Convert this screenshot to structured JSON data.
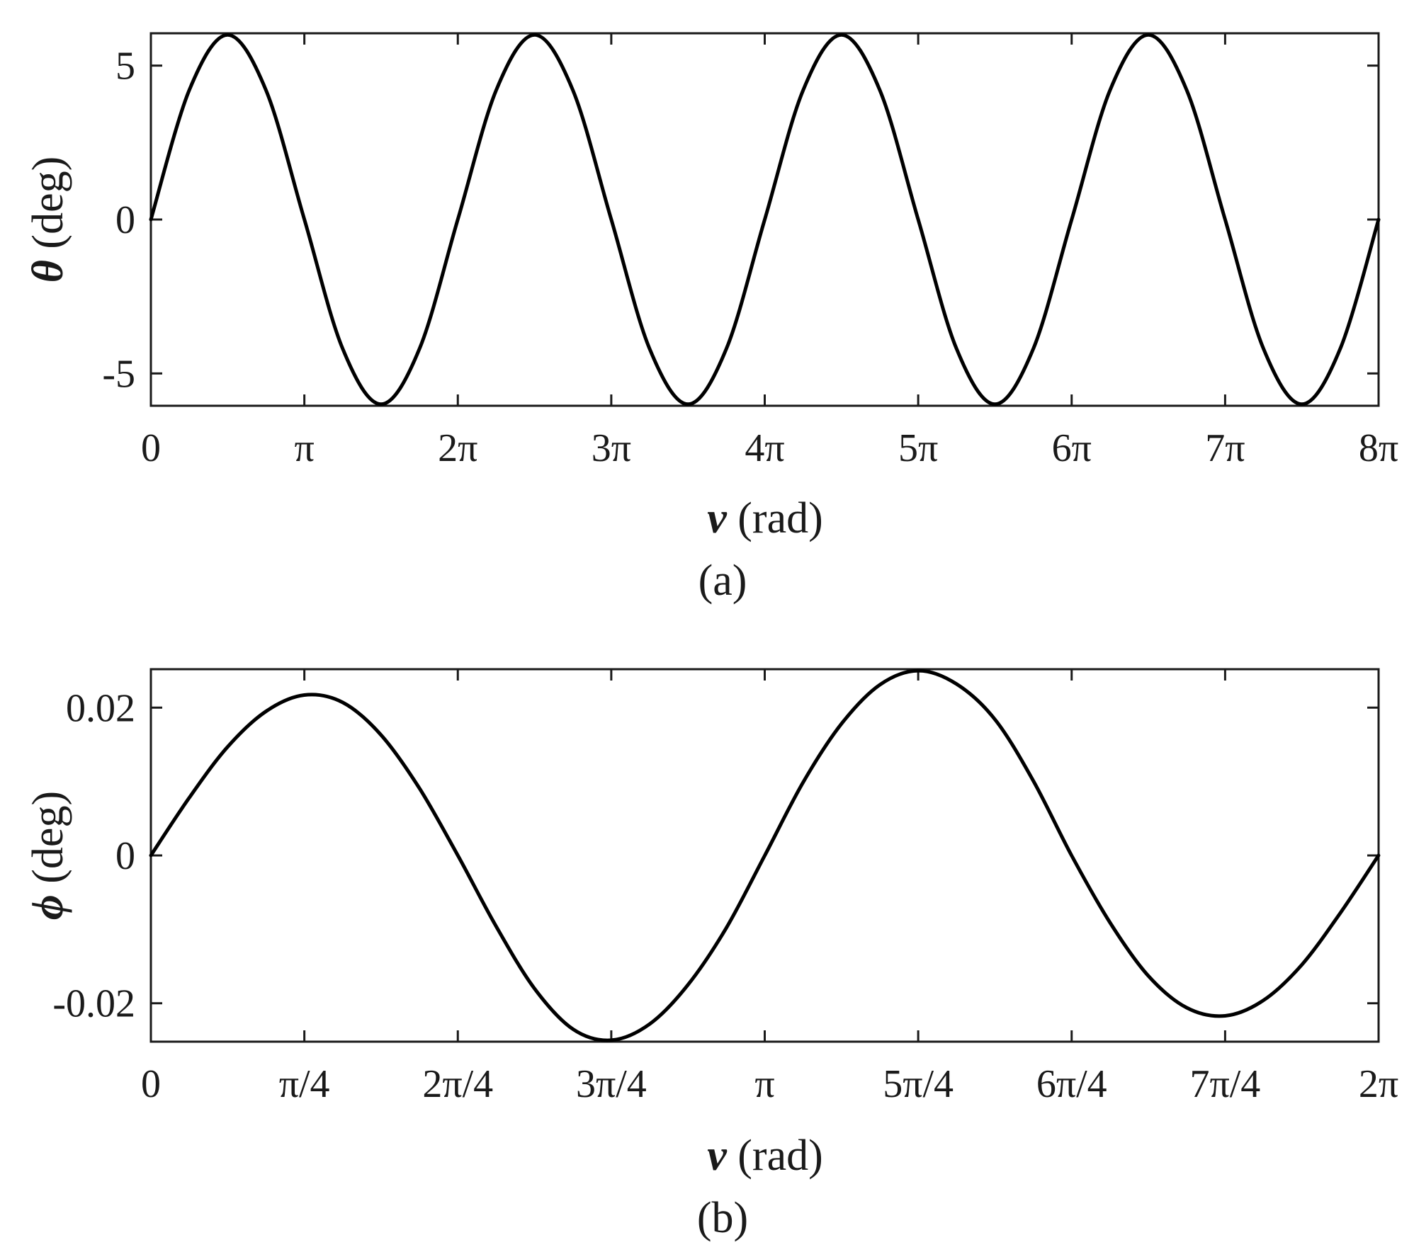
{
  "colors": {
    "line": "#000000",
    "axes": "#1a1a1a",
    "background": "#ffffff"
  },
  "chart_data": [
    {
      "type": "line",
      "caption": "(a)",
      "xlabel_symbol": "ν",
      "xlabel_unit": " (rad)",
      "ylabel_symbol": "θ",
      "ylabel_unit": " (deg)",
      "xlim": [
        0,
        25.1327
      ],
      "ylim": [
        -6.05,
        6.05
      ],
      "x_ticks": [
        {
          "value": 0,
          "label": "0"
        },
        {
          "value": 3.14159,
          "label": "π"
        },
        {
          "value": 6.28319,
          "label": "2π"
        },
        {
          "value": 9.42478,
          "label": "3π"
        },
        {
          "value": 12.56637,
          "label": "4π"
        },
        {
          "value": 15.70796,
          "label": "5π"
        },
        {
          "value": 18.84956,
          "label": "6π"
        },
        {
          "value": 21.99115,
          "label": "7π"
        },
        {
          "value": 25.13274,
          "label": "8π"
        }
      ],
      "y_ticks": [
        {
          "value": -5,
          "label": "-5"
        },
        {
          "value": 0,
          "label": "0"
        },
        {
          "value": 5,
          "label": "5"
        }
      ],
      "grid": false,
      "series": [
        {
          "x": [
            0,
            0.785,
            1.571,
            2.356,
            3.142,
            3.927,
            4.712,
            5.498,
            6.283,
            7.069,
            7.854,
            8.639,
            9.425,
            10.21,
            10.996,
            11.781,
            12.566,
            13.352,
            14.137,
            14.923,
            15.708,
            16.493,
            17.279,
            18.064,
            18.85,
            19.635,
            20.42,
            21.206,
            21.991,
            22.777,
            23.562,
            24.347,
            25.133
          ],
          "y": [
            0,
            4.2,
            6.0,
            4.2,
            0,
            -4.2,
            -6.0,
            -4.2,
            0,
            4.2,
            6.0,
            4.2,
            0,
            -4.2,
            -6.0,
            -4.2,
            0,
            4.2,
            6.0,
            4.2,
            0,
            -4.2,
            -6.0,
            -4.2,
            0,
            4.2,
            6.0,
            4.2,
            0,
            -4.2,
            -6.0,
            -4.2,
            0
          ]
        }
      ]
    },
    {
      "type": "line",
      "caption": "(b)",
      "xlabel_symbol": "ν",
      "xlabel_unit": " (rad)",
      "ylabel_symbol": "ϕ",
      "ylabel_unit": " (deg)",
      "xlim": [
        0,
        6.28319
      ],
      "ylim": [
        -0.0252,
        0.0252
      ],
      "x_ticks": [
        {
          "value": 0,
          "label": "0"
        },
        {
          "value": 0.7854,
          "label": "π/4"
        },
        {
          "value": 1.5708,
          "label": "2π/4"
        },
        {
          "value": 2.35619,
          "label": "3π/4"
        },
        {
          "value": 3.14159,
          "label": "π"
        },
        {
          "value": 3.92699,
          "label": "5π/4"
        },
        {
          "value": 4.71239,
          "label": "6π/4"
        },
        {
          "value": 5.49779,
          "label": "7π/4"
        },
        {
          "value": 6.28319,
          "label": "2π"
        }
      ],
      "y_ticks": [
        {
          "value": -0.02,
          "label": "-0.02"
        },
        {
          "value": 0,
          "label": "0"
        },
        {
          "value": 0.02,
          "label": "0.02"
        }
      ],
      "grid": false,
      "series": [
        {
          "x": [
            0,
            0.196,
            0.393,
            0.589,
            0.785,
            0.982,
            1.178,
            1.374,
            1.571,
            1.767,
            1.963,
            2.16,
            2.356,
            2.553,
            2.749,
            2.945,
            3.142,
            3.338,
            3.534,
            3.731,
            3.927,
            4.123,
            4.32,
            4.516,
            4.712,
            4.909,
            5.105,
            5.301,
            5.498,
            5.694,
            5.89,
            6.087,
            6.283
          ],
          "y": [
            0,
            0.0078,
            0.0147,
            0.0195,
            0.0217,
            0.0207,
            0.0163,
            0.0091,
            0,
            -0.0096,
            -0.018,
            -0.0235,
            -0.025,
            -0.0228,
            -0.0175,
            -0.0098,
            0,
            0.0099,
            0.0178,
            0.0231,
            0.025,
            0.0232,
            0.0184,
            0.0101,
            0,
            -0.0091,
            -0.0163,
            -0.0206,
            -0.0217,
            -0.0196,
            -0.0148,
            -0.0078,
            0
          ]
        }
      ]
    }
  ]
}
